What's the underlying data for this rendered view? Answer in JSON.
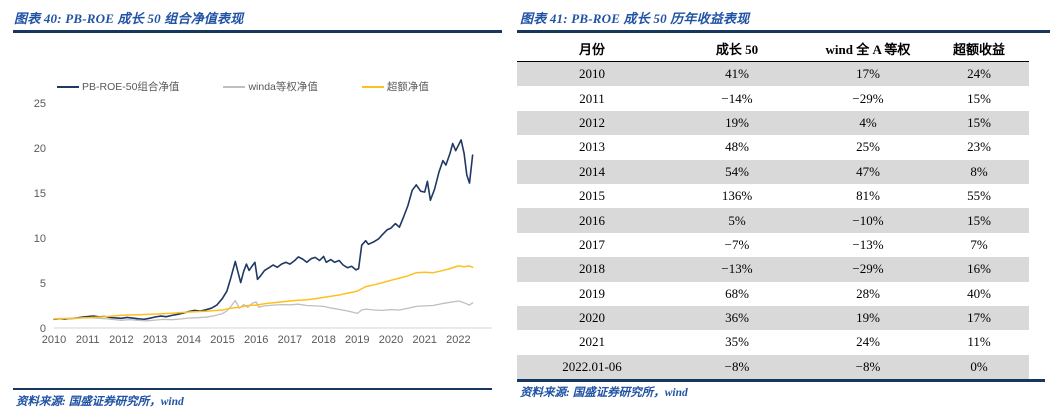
{
  "left_figure": {
    "title": "图表 40:  PB-ROE 成长 50 组合净值表现",
    "source": "资料来源: 国盛证券研究所，wind"
  },
  "right_figure": {
    "title": "图表 41:  PB-ROE 成长 50 历年收益表现",
    "source": "资料来源: 国盛证券研究所，wind"
  },
  "colors": {
    "title_blue": "#2153A5",
    "rule_navy": "#17375D",
    "shaded_row_gray": "#D9D9D9",
    "axis_text_gray": "#595959"
  },
  "chart_data": [
    {
      "type": "line",
      "title": "PB-ROE 成长 50 组合净值表现",
      "xlabel": "",
      "ylabel": "",
      "x_range": [
        2010,
        2022.6
      ],
      "ylim": [
        0,
        25
      ],
      "yticks": [
        0,
        5,
        10,
        15,
        20,
        25
      ],
      "xticks": [
        2010,
        2011,
        2012,
        2013,
        2014,
        2015,
        2016,
        2017,
        2018,
        2019,
        2020,
        2021,
        2022
      ],
      "grid": false,
      "legend_position": "top",
      "series": [
        {
          "name": "PB-ROE-50组合净值",
          "color": "#1F3864",
          "stroke_width": 1.6,
          "points": [
            [
              2010.0,
              0.97
            ],
            [
              2010.17,
              1.03
            ],
            [
              2010.33,
              0.98
            ],
            [
              2010.5,
              1.06
            ],
            [
              2010.67,
              1.12
            ],
            [
              2010.83,
              1.2
            ],
            [
              2011.0,
              1.28
            ],
            [
              2011.17,
              1.33
            ],
            [
              2011.33,
              1.24
            ],
            [
              2011.5,
              1.28
            ],
            [
              2011.67,
              1.17
            ],
            [
              2011.83,
              1.12
            ],
            [
              2012.0,
              1.08
            ],
            [
              2012.17,
              1.18
            ],
            [
              2012.33,
              1.1
            ],
            [
              2012.5,
              1.02
            ],
            [
              2012.67,
              0.97
            ],
            [
              2012.83,
              1.08
            ],
            [
              2013.0,
              1.22
            ],
            [
              2013.17,
              1.32
            ],
            [
              2013.33,
              1.26
            ],
            [
              2013.5,
              1.4
            ],
            [
              2013.67,
              1.52
            ],
            [
              2013.83,
              1.66
            ],
            [
              2014.0,
              1.83
            ],
            [
              2014.17,
              1.95
            ],
            [
              2014.33,
              1.88
            ],
            [
              2014.5,
              2.02
            ],
            [
              2014.67,
              2.2
            ],
            [
              2014.83,
              2.55
            ],
            [
              2015.0,
              3.3
            ],
            [
              2015.13,
              4.1
            ],
            [
              2015.25,
              5.6
            ],
            [
              2015.38,
              7.4
            ],
            [
              2015.46,
              6.2
            ],
            [
              2015.54,
              5.05
            ],
            [
              2015.63,
              6.3
            ],
            [
              2015.71,
              7.1
            ],
            [
              2015.79,
              6.4
            ],
            [
              2015.88,
              6.9
            ],
            [
              2015.96,
              7.3
            ],
            [
              2016.04,
              5.4
            ],
            [
              2016.13,
              5.8
            ],
            [
              2016.25,
              6.4
            ],
            [
              2016.38,
              6.7
            ],
            [
              2016.5,
              7.0
            ],
            [
              2016.63,
              6.75
            ],
            [
              2016.75,
              7.1
            ],
            [
              2016.88,
              7.3
            ],
            [
              2017.0,
              7.1
            ],
            [
              2017.13,
              7.45
            ],
            [
              2017.25,
              7.9
            ],
            [
              2017.38,
              7.65
            ],
            [
              2017.5,
              7.3
            ],
            [
              2017.63,
              7.7
            ],
            [
              2017.75,
              7.85
            ],
            [
              2017.88,
              7.5
            ],
            [
              2018.0,
              7.95
            ],
            [
              2018.08,
              7.3
            ],
            [
              2018.21,
              7.6
            ],
            [
              2018.33,
              7.3
            ],
            [
              2018.46,
              7.5
            ],
            [
              2018.58,
              7.0
            ],
            [
              2018.71,
              6.7
            ],
            [
              2018.83,
              6.85
            ],
            [
              2018.96,
              6.45
            ],
            [
              2019.04,
              6.6
            ],
            [
              2019.13,
              9.2
            ],
            [
              2019.25,
              9.7
            ],
            [
              2019.33,
              9.3
            ],
            [
              2019.5,
              9.6
            ],
            [
              2019.63,
              9.9
            ],
            [
              2019.75,
              10.4
            ],
            [
              2019.88,
              10.9
            ],
            [
              2020.0,
              11.1
            ],
            [
              2020.13,
              11.6
            ],
            [
              2020.25,
              11.2
            ],
            [
              2020.38,
              12.4
            ],
            [
              2020.5,
              13.6
            ],
            [
              2020.63,
              15.3
            ],
            [
              2020.75,
              15.9
            ],
            [
              2020.88,
              15.2
            ],
            [
              2021.0,
              15.1
            ],
            [
              2021.08,
              16.3
            ],
            [
              2021.17,
              14.2
            ],
            [
              2021.29,
              15.4
            ],
            [
              2021.42,
              17.3
            ],
            [
              2021.54,
              18.6
            ],
            [
              2021.63,
              18.1
            ],
            [
              2021.75,
              19.4
            ],
            [
              2021.83,
              20.5
            ],
            [
              2021.92,
              19.7
            ],
            [
              2022.0,
              20.3
            ],
            [
              2022.08,
              20.9
            ],
            [
              2022.17,
              19.4
            ],
            [
              2022.25,
              17.0
            ],
            [
              2022.33,
              16.1
            ],
            [
              2022.42,
              19.2
            ]
          ]
        },
        {
          "name": "winda等权净值",
          "color": "#BFBFBF",
          "stroke_width": 1.3,
          "points": [
            [
              2010.0,
              1.0
            ],
            [
              2010.25,
              1.06
            ],
            [
              2010.5,
              0.99
            ],
            [
              2010.75,
              1.1
            ],
            [
              2011.0,
              1.17
            ],
            [
              2011.25,
              1.1
            ],
            [
              2011.5,
              1.04
            ],
            [
              2011.75,
              0.94
            ],
            [
              2012.0,
              0.85
            ],
            [
              2012.25,
              0.93
            ],
            [
              2012.5,
              0.85
            ],
            [
              2012.75,
              0.8
            ],
            [
              2013.0,
              0.88
            ],
            [
              2013.25,
              0.96
            ],
            [
              2013.5,
              0.92
            ],
            [
              2013.75,
              1.0
            ],
            [
              2014.0,
              1.1
            ],
            [
              2014.25,
              1.15
            ],
            [
              2014.5,
              1.2
            ],
            [
              2014.75,
              1.35
            ],
            [
              2015.0,
              1.6
            ],
            [
              2015.13,
              1.9
            ],
            [
              2015.25,
              2.4
            ],
            [
              2015.38,
              3.05
            ],
            [
              2015.5,
              2.2
            ],
            [
              2015.63,
              2.6
            ],
            [
              2015.75,
              2.3
            ],
            [
              2015.88,
              2.75
            ],
            [
              2016.0,
              2.9
            ],
            [
              2016.08,
              2.3
            ],
            [
              2016.25,
              2.45
            ],
            [
              2016.5,
              2.55
            ],
            [
              2016.75,
              2.6
            ],
            [
              2017.0,
              2.58
            ],
            [
              2017.25,
              2.65
            ],
            [
              2017.5,
              2.5
            ],
            [
              2017.75,
              2.45
            ],
            [
              2018.0,
              2.4
            ],
            [
              2018.25,
              2.2
            ],
            [
              2018.5,
              2.05
            ],
            [
              2018.75,
              1.85
            ],
            [
              2019.0,
              1.62
            ],
            [
              2019.13,
              2.0
            ],
            [
              2019.25,
              2.1
            ],
            [
              2019.5,
              2.0
            ],
            [
              2019.75,
              1.95
            ],
            [
              2020.0,
              2.05
            ],
            [
              2020.25,
              2.0
            ],
            [
              2020.5,
              2.2
            ],
            [
              2020.75,
              2.4
            ],
            [
              2021.0,
              2.45
            ],
            [
              2021.25,
              2.5
            ],
            [
              2021.5,
              2.7
            ],
            [
              2021.75,
              2.85
            ],
            [
              2022.0,
              3.0
            ],
            [
              2022.17,
              2.8
            ],
            [
              2022.33,
              2.55
            ],
            [
              2022.42,
              2.8
            ]
          ]
        },
        {
          "name": "超额净值",
          "color": "#FFC01E",
          "stroke_width": 1.5,
          "points": [
            [
              2010.0,
              1.0
            ],
            [
              2010.5,
              1.08
            ],
            [
              2011.0,
              1.15
            ],
            [
              2011.5,
              1.25
            ],
            [
              2012.0,
              1.42
            ],
            [
              2012.5,
              1.48
            ],
            [
              2013.0,
              1.55
            ],
            [
              2013.5,
              1.63
            ],
            [
              2014.0,
              1.78
            ],
            [
              2014.5,
              1.85
            ],
            [
              2015.0,
              2.0
            ],
            [
              2015.25,
              2.2
            ],
            [
              2015.5,
              2.3
            ],
            [
              2015.75,
              2.5
            ],
            [
              2016.0,
              2.55
            ],
            [
              2016.25,
              2.7
            ],
            [
              2016.5,
              2.8
            ],
            [
              2016.75,
              2.9
            ],
            [
              2017.0,
              3.0
            ],
            [
              2017.25,
              3.08
            ],
            [
              2017.5,
              3.15
            ],
            [
              2017.75,
              3.25
            ],
            [
              2018.0,
              3.4
            ],
            [
              2018.25,
              3.55
            ],
            [
              2018.5,
              3.7
            ],
            [
              2018.75,
              3.9
            ],
            [
              2019.0,
              4.1
            ],
            [
              2019.25,
              4.6
            ],
            [
              2019.5,
              4.8
            ],
            [
              2019.75,
              5.05
            ],
            [
              2020.0,
              5.3
            ],
            [
              2020.25,
              5.55
            ],
            [
              2020.5,
              5.8
            ],
            [
              2020.75,
              6.15
            ],
            [
              2021.0,
              6.2
            ],
            [
              2021.25,
              6.15
            ],
            [
              2021.5,
              6.35
            ],
            [
              2021.75,
              6.6
            ],
            [
              2022.0,
              6.9
            ],
            [
              2022.17,
              6.8
            ],
            [
              2022.33,
              6.9
            ],
            [
              2022.42,
              6.75
            ]
          ]
        }
      ]
    },
    {
      "type": "table",
      "title": "PB-ROE 成长 50 历年收益表现",
      "headers": [
        "月份",
        "成长 50",
        "wind 全 A 等权",
        "超额收益"
      ],
      "rows": [
        [
          "2010",
          "41%",
          "17%",
          "24%"
        ],
        [
          "2011",
          "−14%",
          "−29%",
          "15%"
        ],
        [
          "2012",
          "19%",
          "4%",
          "15%"
        ],
        [
          "2013",
          "48%",
          "25%",
          "23%"
        ],
        [
          "2014",
          "54%",
          "47%",
          "8%"
        ],
        [
          "2015",
          "136%",
          "81%",
          "55%"
        ],
        [
          "2016",
          "5%",
          "−10%",
          "15%"
        ],
        [
          "2017",
          "−7%",
          "−13%",
          "7%"
        ],
        [
          "2018",
          "−13%",
          "−29%",
          "16%"
        ],
        [
          "2019",
          "68%",
          "28%",
          "40%"
        ],
        [
          "2020",
          "36%",
          "19%",
          "17%"
        ],
        [
          "2021",
          "35%",
          "24%",
          "11%"
        ],
        [
          "2022.01-06",
          "−8%",
          "−8%",
          "0%"
        ]
      ]
    }
  ]
}
